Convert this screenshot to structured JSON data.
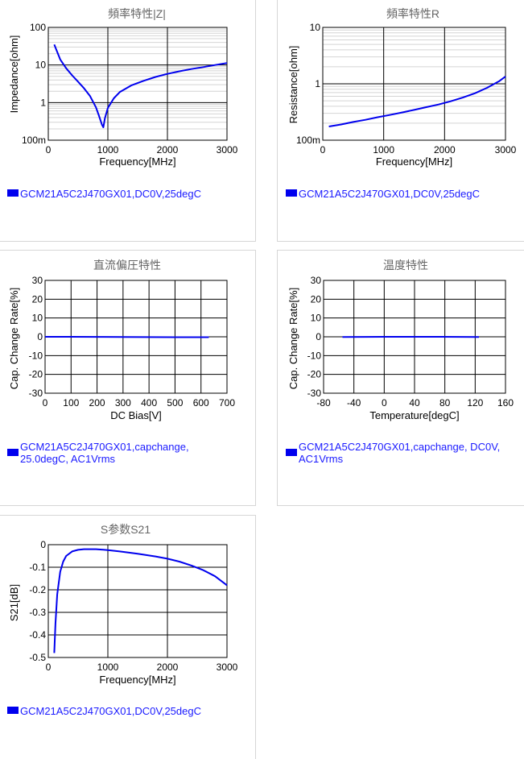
{
  "chart_data": [
    {
      "type": "line",
      "title": "頻率特性|Z|",
      "xlabel": "Frequency[MHz]",
      "ylabel": "Impedance[ohm]",
      "xlim": [
        0,
        3000
      ],
      "ylim": [
        0.1,
        100
      ],
      "yscale": "log",
      "xticks": [
        0,
        1000,
        2000,
        3000
      ],
      "xtick_labels": [
        "0",
        "1000",
        "2000",
        "3000"
      ],
      "yticks": [
        0.1,
        1,
        10,
        100
      ],
      "ytick_labels": [
        "100m",
        "1",
        "10",
        "100"
      ],
      "grid": true,
      "color": "#0000ee",
      "x": [
        100,
        200,
        300,
        400,
        500,
        600,
        700,
        800,
        850,
        900,
        925,
        950,
        1000,
        1100,
        1200,
        1400,
        1600,
        1800,
        2000,
        2200,
        2400,
        2600,
        2800,
        3000
      ],
      "y": [
        35,
        14,
        8.2,
        5.3,
        3.6,
        2.4,
        1.5,
        0.75,
        0.45,
        0.26,
        0.22,
        0.38,
        0.72,
        1.3,
        1.9,
        2.9,
        3.8,
        4.8,
        5.8,
        6.8,
        7.8,
        8.8,
        10.0,
        11.3
      ],
      "legend": "GCM21A5C2J470GX01,DC0V,25degC"
    },
    {
      "type": "line",
      "title": "頻率特性R",
      "xlabel": "Frequency[MHz]",
      "ylabel": "Resistance[ohm]",
      "xlim": [
        0,
        3000
      ],
      "ylim": [
        0.1,
        10
      ],
      "yscale": "log",
      "xticks": [
        0,
        1000,
        2000,
        3000
      ],
      "xtick_labels": [
        "0",
        "1000",
        "2000",
        "3000"
      ],
      "yticks": [
        0.1,
        1,
        10
      ],
      "ytick_labels": [
        "100m",
        "1",
        "10"
      ],
      "grid": true,
      "color": "#0000ee",
      "x": [
        100,
        300,
        500,
        700,
        900,
        1100,
        1300,
        1500,
        1700,
        1900,
        2100,
        2300,
        2500,
        2700,
        2900,
        3000
      ],
      "y": [
        0.175,
        0.19,
        0.21,
        0.23,
        0.255,
        0.28,
        0.31,
        0.345,
        0.385,
        0.43,
        0.49,
        0.57,
        0.68,
        0.85,
        1.12,
        1.35
      ],
      "legend": "GCM21A5C2J470GX01,DC0V,25degC"
    },
    {
      "type": "line",
      "title": "直流偏圧特性",
      "xlabel": "DC Bias[V]",
      "ylabel": "Cap. Change Rate[%]",
      "xlim": [
        0,
        700
      ],
      "ylim": [
        -30,
        30
      ],
      "xticks": [
        0,
        100,
        200,
        300,
        400,
        500,
        600,
        700
      ],
      "xtick_labels": [
        "0",
        "100",
        "200",
        "300",
        "400",
        "500",
        "600",
        "700"
      ],
      "yticks": [
        -30,
        -20,
        -10,
        0,
        10,
        20,
        30
      ],
      "ytick_labels": [
        "-30",
        "-20",
        "-10",
        "0",
        "10",
        "20",
        "30"
      ],
      "grid": true,
      "color": "#0000ee",
      "x": [
        0,
        100,
        200,
        300,
        400,
        500,
        600,
        630
      ],
      "y": [
        0,
        0,
        -0.05,
        -0.1,
        -0.15,
        -0.2,
        -0.2,
        -0.2
      ],
      "legend_lines": [
        "GCM21A5C2J470GX01,capchange,",
        "25.0degC, AC1Vrms"
      ]
    },
    {
      "type": "line",
      "title": "温度特性",
      "xlabel": "Temperature[degC]",
      "ylabel": "Cap. Change Rate[%]",
      "xlim": [
        -80,
        160
      ],
      "ylim": [
        -30,
        30
      ],
      "xticks": [
        -80,
        -40,
        0,
        40,
        80,
        120,
        160
      ],
      "xtick_labels": [
        "-80",
        "-40",
        "0",
        "40",
        "80",
        "120",
        "160"
      ],
      "yticks": [
        -30,
        -20,
        -10,
        0,
        10,
        20,
        30
      ],
      "ytick_labels": [
        "-30",
        "-20",
        "-10",
        "0",
        "10",
        "20",
        "30"
      ],
      "grid": true,
      "color": "#0000ee",
      "x": [
        -55,
        -25,
        0,
        25,
        50,
        75,
        100,
        125
      ],
      "y": [
        -0.1,
        -0.05,
        0,
        0,
        0,
        0,
        -0.05,
        -0.1
      ],
      "legend_lines": [
        "GCM21A5C2J470GX01,capchange, DC0V,",
        "AC1Vrms"
      ]
    },
    {
      "type": "line",
      "title": "S参数S21",
      "xlabel": "Frequency[MHz]",
      "ylabel": "S21[dB]",
      "xlim": [
        0,
        3000
      ],
      "ylim": [
        -0.5,
        0
      ],
      "xticks": [
        0,
        1000,
        2000,
        3000
      ],
      "xtick_labels": [
        "0",
        "1000",
        "2000",
        "3000"
      ],
      "yticks": [
        -0.5,
        -0.4,
        -0.3,
        -0.2,
        -0.1,
        0
      ],
      "ytick_labels": [
        "-0.5",
        "-0.4",
        "-0.3",
        "-0.2",
        "-0.1",
        "0"
      ],
      "grid": true,
      "color": "#0000ee",
      "x": [
        100,
        120,
        150,
        200,
        250,
        300,
        400,
        500,
        600,
        800,
        1000,
        1200,
        1500,
        1800,
        2000,
        2200,
        2400,
        2600,
        2800,
        3000
      ],
      "y": [
        -0.48,
        -0.35,
        -0.22,
        -0.12,
        -0.075,
        -0.05,
        -0.03,
        -0.023,
        -0.02,
        -0.02,
        -0.024,
        -0.03,
        -0.04,
        -0.052,
        -0.062,
        -0.075,
        -0.092,
        -0.113,
        -0.14,
        -0.18
      ],
      "legend": "GCM21A5C2J470GX01,DC0V,25degC"
    }
  ]
}
